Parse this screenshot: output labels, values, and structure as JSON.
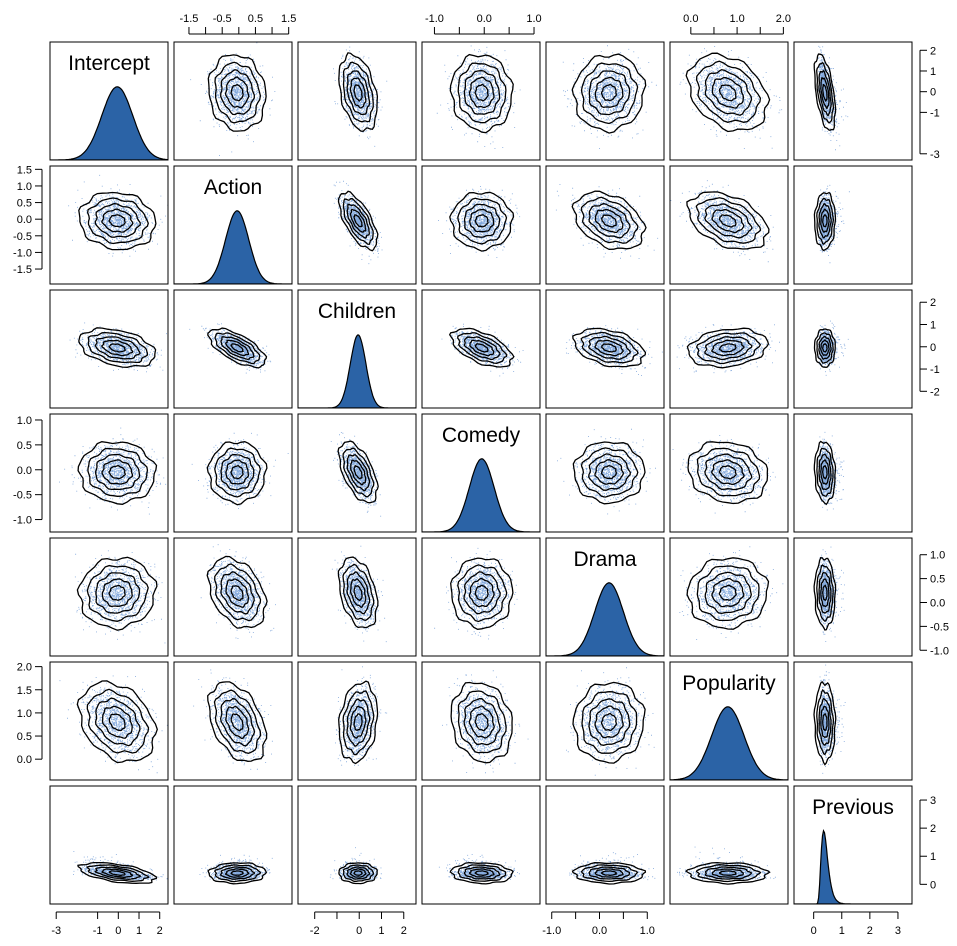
{
  "chart_data": {
    "type": "scatter",
    "variables": [
      "Intercept",
      "Action",
      "Children",
      "Comedy",
      "Drama",
      "Popularity",
      "Previous"
    ],
    "diagonal_panel_type": "density",
    "off_diagonal_panel_type": "scatter-with-contours",
    "point_color": "#6f9ad6",
    "density_fill_color": "#2b63a6",
    "contour_color": "#000000",
    "axes": [
      {
        "variable": "Intercept",
        "range": [
          -3.3,
          2.4
        ],
        "ticks": [
          -3,
          -1,
          0,
          1,
          2
        ],
        "tick_labels": [
          "-3",
          "-1",
          "0",
          "1",
          "2"
        ],
        "side": "bottom"
      },
      {
        "variable": "Action",
        "range": [
          -1.95,
          1.6
        ],
        "ticks": [
          -1.5,
          -1.0,
          -0.5,
          0.0,
          0.5,
          1.0,
          1.5
        ],
        "tick_labels": [
          "-1.5",
          "-1.0",
          "-0.5",
          "0.0",
          "0.5",
          "1.0",
          "1.5"
        ],
        "top_tick_labels": [
          "-1.5",
          "",
          "-0.5",
          "",
          "0.5",
          "",
          "1.5"
        ],
        "side": "top-left"
      },
      {
        "variable": "Children",
        "range": [
          -2.75,
          2.55
        ],
        "ticks": [
          -2,
          -1,
          0,
          1,
          2
        ],
        "tick_labels": [
          "-2",
          "-1",
          "0",
          "1",
          "2"
        ],
        "bottom_tick_labels": [
          "-2",
          "",
          "0",
          "1",
          "2"
        ],
        "side": "bottom-right"
      },
      {
        "variable": "Comedy",
        "range": [
          -1.25,
          1.12
        ],
        "ticks": [
          -1.0,
          -0.5,
          0.0,
          0.5,
          1.0
        ],
        "tick_labels": [
          "-1.0",
          "-0.5",
          "0.0",
          "0.5",
          "1.0"
        ],
        "top_tick_labels": [
          "-1.0",
          "",
          "0.0",
          "",
          "1.0"
        ],
        "side": "top-left"
      },
      {
        "variable": "Drama",
        "range": [
          -1.12,
          1.35
        ],
        "ticks": [
          -1.0,
          -0.5,
          0.0,
          0.5,
          1.0
        ],
        "tick_labels": [
          "-1.0",
          "-0.5",
          "0.0",
          "0.5",
          "1.0"
        ],
        "bottom_tick_labels": [
          "-1.0",
          "",
          "0.0",
          "",
          "1.0"
        ],
        "side": "bottom-right"
      },
      {
        "variable": "Popularity",
        "range": [
          -0.45,
          2.1
        ],
        "ticks": [
          0.0,
          0.5,
          1.0,
          1.5,
          2.0
        ],
        "tick_labels": [
          "0.0",
          "0.5",
          "1.0",
          "1.5",
          "2.0"
        ],
        "top_tick_labels": [
          "0.0",
          "",
          "1.0",
          "",
          "2.0"
        ],
        "side": "top-left"
      },
      {
        "variable": "Previous",
        "range": [
          -0.7,
          3.5
        ],
        "ticks": [
          0,
          1,
          2,
          3
        ],
        "tick_labels": [
          "0",
          "1",
          "2",
          "3"
        ],
        "side": "bottom-right"
      }
    ],
    "distributions": [
      {
        "variable": "Intercept",
        "mean": -0.05,
        "sd": 0.75
      },
      {
        "variable": "Action",
        "mean": -0.05,
        "sd": 0.35
      },
      {
        "variable": "Children",
        "mean": -0.05,
        "sd": 0.35
      },
      {
        "variable": "Comedy",
        "mean": -0.05,
        "sd": 0.25
      },
      {
        "variable": "Drama",
        "mean": 0.2,
        "sd": 0.3
      },
      {
        "variable": "Popularity",
        "mean": 0.8,
        "sd": 0.35
      },
      {
        "variable": "Previous",
        "mean": 0.4,
        "sd": 0.15,
        "skew": "right"
      }
    ],
    "correlations": [
      {
        "pair": [
          "Intercept",
          "Action"
        ],
        "r": -0.1
      },
      {
        "pair": [
          "Intercept",
          "Children"
        ],
        "r": -0.35
      },
      {
        "pair": [
          "Intercept",
          "Comedy"
        ],
        "r": -0.05
      },
      {
        "pair": [
          "Intercept",
          "Drama"
        ],
        "r": 0.05
      },
      {
        "pair": [
          "Intercept",
          "Popularity"
        ],
        "r": -0.3
      },
      {
        "pair": [
          "Intercept",
          "Previous"
        ],
        "r": -0.5
      },
      {
        "pair": [
          "Action",
          "Children"
        ],
        "r": -0.65
      },
      {
        "pair": [
          "Action",
          "Comedy"
        ],
        "r": 0.0
      },
      {
        "pair": [
          "Action",
          "Drama"
        ],
        "r": -0.35
      },
      {
        "pair": [
          "Action",
          "Popularity"
        ],
        "r": -0.4
      },
      {
        "pair": [
          "Action",
          "Previous"
        ],
        "r": 0.05
      },
      {
        "pair": [
          "Children",
          "Comedy"
        ],
        "r": -0.55
      },
      {
        "pair": [
          "Children",
          "Drama"
        ],
        "r": -0.35
      },
      {
        "pair": [
          "Children",
          "Popularity"
        ],
        "r": 0.2
      },
      {
        "pair": [
          "Children",
          "Previous"
        ],
        "r": 0.0
      },
      {
        "pair": [
          "Comedy",
          "Drama"
        ],
        "r": 0.0
      },
      {
        "pair": [
          "Comedy",
          "Popularity"
        ],
        "r": -0.15
      },
      {
        "pair": [
          "Comedy",
          "Previous"
        ],
        "r": -0.1
      },
      {
        "pair": [
          "Drama",
          "Popularity"
        ],
        "r": 0.05
      },
      {
        "pair": [
          "Drama",
          "Previous"
        ],
        "r": -0.05
      },
      {
        "pair": [
          "Popularity",
          "Previous"
        ],
        "r": -0.05
      }
    ],
    "grid": false,
    "legend": "none"
  }
}
